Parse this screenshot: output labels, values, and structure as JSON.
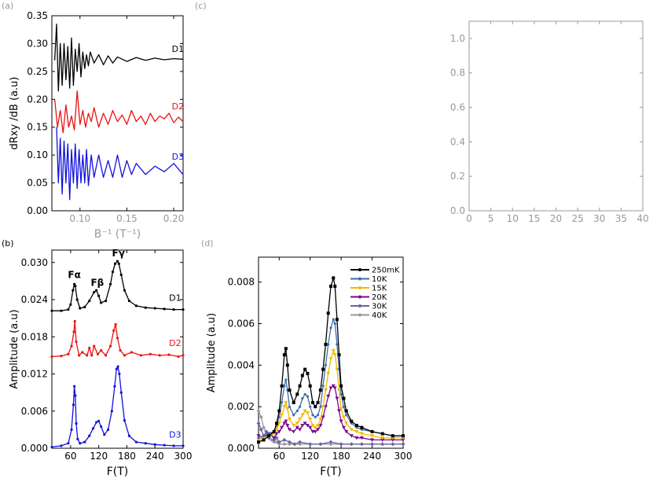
{
  "panel_labels": {
    "a": "(a)",
    "b": "(b)",
    "c": "(c)",
    "d": "(d)"
  },
  "colors": {
    "D1": "#000000",
    "D2": "#ee1111",
    "D3": "#1111dd",
    "axis_gray": "#999999",
    "c250mK": "#000000",
    "c10K": "#3a6fb0",
    "c15K": "#f5b800",
    "c20K": "#7a0a8c",
    "c30K": "#6a62a8",
    "c40K": "#999999"
  },
  "chart_data": [
    {
      "id": "a",
      "type": "line",
      "xlabel": "B⁻¹ (T⁻¹)",
      "ylabel": "dRxy /dB (a.u)",
      "xlim": [
        0.07,
        0.21
      ],
      "ylim": [
        0.0,
        0.35
      ],
      "xticks": [
        0.1,
        0.15,
        0.2
      ],
      "xtick_labels": [
        "0.10",
        "0.15",
        "0.20"
      ],
      "yticks": [
        0.0,
        0.05,
        0.1,
        0.15,
        0.2,
        0.25,
        0.3,
        0.35
      ],
      "ytick_labels": [
        "0.00",
        "0.05",
        "0.10",
        "0.15",
        "0.20",
        "0.25",
        "0.30",
        "0.35"
      ],
      "series": [
        {
          "name": "D1",
          "baseline": 0.272,
          "x_start": 0.073,
          "x": [
            0.073,
            0.075,
            0.077,
            0.079,
            0.081,
            0.083,
            0.085,
            0.087,
            0.089,
            0.091,
            0.093,
            0.095,
            0.097,
            0.099,
            0.101,
            0.103,
            0.105,
            0.107,
            0.109,
            0.111,
            0.115,
            0.12,
            0.125,
            0.13,
            0.135,
            0.14,
            0.15,
            0.16,
            0.17,
            0.18,
            0.19,
            0.2,
            0.21
          ],
          "y": [
            0.27,
            0.335,
            0.215,
            0.3,
            0.225,
            0.3,
            0.235,
            0.295,
            0.22,
            0.31,
            0.225,
            0.29,
            0.25,
            0.3,
            0.24,
            0.285,
            0.255,
            0.28,
            0.26,
            0.285,
            0.265,
            0.28,
            0.262,
            0.278,
            0.265,
            0.276,
            0.268,
            0.275,
            0.27,
            0.274,
            0.271,
            0.273,
            0.272
          ]
        },
        {
          "name": "D2",
          "baseline": 0.162,
          "x": [
            0.073,
            0.076,
            0.079,
            0.082,
            0.085,
            0.088,
            0.091,
            0.094,
            0.097,
            0.1,
            0.103,
            0.106,
            0.109,
            0.112,
            0.115,
            0.12,
            0.125,
            0.13,
            0.135,
            0.14,
            0.145,
            0.15,
            0.155,
            0.16,
            0.165,
            0.17,
            0.175,
            0.18,
            0.185,
            0.19,
            0.195,
            0.2,
            0.205,
            0.21
          ],
          "y": [
            0.2,
            0.15,
            0.18,
            0.14,
            0.19,
            0.15,
            0.17,
            0.145,
            0.215,
            0.155,
            0.18,
            0.15,
            0.175,
            0.16,
            0.185,
            0.15,
            0.175,
            0.155,
            0.18,
            0.16,
            0.172,
            0.155,
            0.18,
            0.16,
            0.17,
            0.155,
            0.175,
            0.16,
            0.17,
            0.165,
            0.175,
            0.158,
            0.168,
            0.16
          ]
        },
        {
          "name": "D3",
          "baseline": 0.075,
          "x": [
            0.075,
            0.077,
            0.079,
            0.081,
            0.083,
            0.085,
            0.087,
            0.089,
            0.091,
            0.093,
            0.095,
            0.097,
            0.099,
            0.101,
            0.103,
            0.105,
            0.107,
            0.109,
            0.112,
            0.115,
            0.12,
            0.125,
            0.13,
            0.135,
            0.14,
            0.145,
            0.15,
            0.155,
            0.16,
            0.17,
            0.18,
            0.19,
            0.2,
            0.21
          ],
          "y": [
            0.15,
            0.05,
            0.13,
            0.03,
            0.125,
            0.05,
            0.12,
            0.02,
            0.11,
            0.05,
            0.12,
            0.04,
            0.11,
            0.05,
            0.1,
            0.05,
            0.11,
            0.045,
            0.1,
            0.06,
            0.1,
            0.06,
            0.09,
            0.06,
            0.1,
            0.06,
            0.09,
            0.065,
            0.085,
            0.065,
            0.08,
            0.07,
            0.085,
            0.065
          ]
        }
      ]
    },
    {
      "id": "b",
      "type": "line",
      "xlabel": "F(T)",
      "ylabel": "Amplitude (a.u)",
      "xlim": [
        20,
        300
      ],
      "ylim": [
        0.0,
        0.032
      ],
      "xticks": [
        60,
        120,
        180,
        240,
        300
      ],
      "xtick_labels": [
        "60",
        "120",
        "180",
        "240",
        "300"
      ],
      "yticks": [
        0.0,
        0.006,
        0.012,
        0.018,
        0.024,
        0.03
      ],
      "ytick_labels": [
        "0.000",
        "0.006",
        "0.012",
        "0.018",
        "0.024",
        "0.030"
      ],
      "series": [
        {
          "name": "D1",
          "x": [
            20,
            40,
            55,
            60,
            65,
            68,
            70,
            74,
            80,
            90,
            100,
            110,
            115,
            120,
            125,
            135,
            145,
            150,
            155,
            160,
            163,
            168,
            175,
            185,
            200,
            220,
            240,
            260,
            280,
            300
          ],
          "y": [
            0.0222,
            0.0222,
            0.0224,
            0.0232,
            0.0255,
            0.0265,
            0.0262,
            0.024,
            0.0226,
            0.0228,
            0.0238,
            0.0252,
            0.0255,
            0.0246,
            0.0235,
            0.0238,
            0.0265,
            0.0285,
            0.0298,
            0.0302,
            0.0298,
            0.028,
            0.0255,
            0.0238,
            0.023,
            0.0227,
            0.0226,
            0.0225,
            0.0224,
            0.0224
          ]
        },
        {
          "name": "D2",
          "x": [
            20,
            40,
            55,
            62,
            67,
            69,
            72,
            78,
            85,
            95,
            100,
            105,
            110,
            118,
            125,
            135,
            145,
            152,
            156,
            160,
            166,
            175,
            190,
            210,
            230,
            250,
            270,
            290,
            300
          ],
          "y": [
            0.0148,
            0.0149,
            0.0152,
            0.0165,
            0.0188,
            0.0205,
            0.0172,
            0.015,
            0.0155,
            0.015,
            0.0162,
            0.015,
            0.0165,
            0.0152,
            0.0158,
            0.015,
            0.0165,
            0.019,
            0.02,
            0.0178,
            0.0158,
            0.015,
            0.0155,
            0.015,
            0.0152,
            0.015,
            0.0151,
            0.0148,
            0.015
          ]
        },
        {
          "name": "D3",
          "x": [
            20,
            40,
            55,
            62,
            66,
            68,
            70,
            72,
            75,
            80,
            90,
            100,
            108,
            115,
            120,
            125,
            132,
            140,
            148,
            154,
            158,
            161,
            164,
            168,
            175,
            185,
            200,
            220,
            240,
            260,
            280,
            300
          ],
          "y": [
            0.0002,
            0.0004,
            0.0008,
            0.003,
            0.007,
            0.01,
            0.0085,
            0.004,
            0.0015,
            0.0008,
            0.001,
            0.002,
            0.0032,
            0.0042,
            0.0044,
            0.0035,
            0.0022,
            0.003,
            0.006,
            0.01,
            0.0128,
            0.0132,
            0.012,
            0.009,
            0.0045,
            0.002,
            0.001,
            0.0008,
            0.0006,
            0.0005,
            0.0004,
            0.0004
          ]
        }
      ],
      "annotations": [
        "Fα",
        "Fβ",
        "Fγ"
      ]
    },
    {
      "id": "c",
      "type": "line",
      "xlim": [
        0,
        40
      ],
      "ylim": [
        0.0,
        1.1
      ],
      "xticks": [
        0,
        5,
        10,
        15,
        20,
        25,
        30,
        35,
        40
      ],
      "xtick_labels": [
        "0",
        "5",
        "10",
        "15",
        "20",
        "25",
        "30",
        "35",
        "40"
      ],
      "yticks": [
        0.0,
        0.2,
        0.4,
        0.6,
        0.8,
        1.0
      ],
      "ytick_labels": [
        "0.0",
        "0.2",
        "0.4",
        "0.6",
        "0.8",
        "1.0"
      ],
      "series": []
    },
    {
      "id": "d",
      "type": "line",
      "xlabel": "F(T)",
      "ylabel": "Amplitude (a.u)",
      "xlim": [
        20,
        300
      ],
      "ylim": [
        0.0,
        0.0092
      ],
      "xticks": [
        60,
        120,
        180,
        240,
        300
      ],
      "xtick_labels": [
        "60",
        "120",
        "180",
        "240",
        "300"
      ],
      "yticks": [
        0.0,
        0.002,
        0.004,
        0.006,
        0.008
      ],
      "ytick_labels": [
        "0.000",
        "0.002",
        "0.004",
        "0.006",
        "0.008"
      ],
      "legend": "top-right",
      "series": [
        {
          "name": "250mK",
          "x": [
            20,
            30,
            40,
            50,
            55,
            60,
            65,
            70,
            73,
            76,
            80,
            88,
            95,
            100,
            105,
            110,
            115,
            120,
            125,
            130,
            135,
            140,
            145,
            150,
            155,
            160,
            165,
            168,
            172,
            176,
            180,
            185,
            190,
            200,
            210,
            220,
            240,
            260,
            280,
            300
          ],
          "y": [
            0.0003,
            0.0004,
            0.0006,
            0.0008,
            0.0012,
            0.0018,
            0.003,
            0.0045,
            0.0048,
            0.004,
            0.0028,
            0.0022,
            0.0026,
            0.003,
            0.0035,
            0.0038,
            0.0036,
            0.003,
            0.0022,
            0.002,
            0.0022,
            0.0028,
            0.0038,
            0.005,
            0.0065,
            0.0078,
            0.0082,
            0.0078,
            0.0062,
            0.0045,
            0.003,
            0.0024,
            0.0018,
            0.0013,
            0.0011,
            0.001,
            0.0008,
            0.0007,
            0.0006,
            0.0006
          ]
        },
        {
          "name": "10K",
          "x": [
            20,
            30,
            40,
            50,
            55,
            60,
            65,
            70,
            73,
            76,
            80,
            88,
            95,
            100,
            105,
            110,
            115,
            120,
            125,
            130,
            135,
            140,
            145,
            150,
            155,
            160,
            165,
            168,
            172,
            176,
            180,
            185,
            190,
            200,
            210,
            220,
            240,
            260,
            280,
            300
          ],
          "y": [
            0.0005,
            0.0006,
            0.0007,
            0.0008,
            0.0011,
            0.0015,
            0.0022,
            0.003,
            0.0033,
            0.0028,
            0.002,
            0.0016,
            0.0018,
            0.002,
            0.0024,
            0.0026,
            0.0025,
            0.002,
            0.0016,
            0.0015,
            0.0016,
            0.002,
            0.003,
            0.004,
            0.005,
            0.0058,
            0.0062,
            0.006,
            0.005,
            0.0038,
            0.0026,
            0.002,
            0.0016,
            0.0012,
            0.001,
            0.0009,
            0.0008,
            0.0007,
            0.0006,
            0.0006
          ]
        },
        {
          "name": "15K",
          "x": [
            20,
            30,
            40,
            50,
            55,
            60,
            65,
            70,
            73,
            76,
            80,
            88,
            95,
            100,
            105,
            110,
            115,
            120,
            125,
            130,
            135,
            140,
            145,
            150,
            155,
            160,
            165,
            168,
            172,
            176,
            180,
            185,
            190,
            200,
            210,
            220,
            240,
            260,
            280,
            300
          ],
          "y": [
            0.0004,
            0.0005,
            0.0006,
            0.0007,
            0.0009,
            0.0012,
            0.0016,
            0.002,
            0.0022,
            0.0019,
            0.0014,
            0.0011,
            0.0012,
            0.0014,
            0.0016,
            0.0018,
            0.0017,
            0.0014,
            0.0011,
            0.001,
            0.0011,
            0.0014,
            0.002,
            0.0028,
            0.0036,
            0.0043,
            0.0047,
            0.0045,
            0.0038,
            0.0028,
            0.0019,
            0.0015,
            0.0012,
            0.0009,
            0.0008,
            0.0007,
            0.0006,
            0.0005,
            0.0005,
            0.0005
          ]
        },
        {
          "name": "20K",
          "x": [
            20,
            30,
            40,
            50,
            55,
            60,
            65,
            70,
            73,
            76,
            80,
            88,
            95,
            100,
            105,
            110,
            115,
            120,
            125,
            130,
            135,
            140,
            145,
            150,
            155,
            160,
            165,
            168,
            172,
            176,
            180,
            185,
            190,
            200,
            210,
            220,
            240,
            260,
            280,
            300
          ],
          "y": [
            0.0006,
            0.0005,
            0.0007,
            0.0005,
            0.0007,
            0.0008,
            0.001,
            0.0012,
            0.0013,
            0.0011,
            0.0009,
            0.0008,
            0.001,
            0.0009,
            0.0011,
            0.0012,
            0.0011,
            0.001,
            0.0008,
            0.0008,
            0.0009,
            0.0011,
            0.0015,
            0.002,
            0.0025,
            0.0029,
            0.003,
            0.0029,
            0.0024,
            0.0018,
            0.0013,
            0.001,
            0.0008,
            0.0006,
            0.0005,
            0.0005,
            0.0004,
            0.0004,
            0.0004,
            0.0004
          ]
        },
        {
          "name": "30K",
          "x": [
            20,
            25,
            30,
            35,
            40,
            45,
            50,
            55,
            60,
            70,
            80,
            90,
            100,
            120,
            140,
            160,
            180,
            200,
            220,
            240,
            260,
            280,
            300
          ],
          "y": [
            0.0012,
            0.0009,
            0.0006,
            0.0008,
            0.0005,
            0.0007,
            0.0004,
            0.0005,
            0.0003,
            0.0004,
            0.0003,
            0.0002,
            0.0003,
            0.0002,
            0.0002,
            0.0003,
            0.0002,
            0.0002,
            0.0002,
            0.0002,
            0.0002,
            0.0002,
            0.0002
          ]
        },
        {
          "name": "40K",
          "x": [
            20,
            25,
            30,
            35,
            40,
            45,
            50,
            55,
            60,
            70,
            80,
            90,
            100,
            120,
            140,
            160,
            180,
            200,
            220,
            240,
            260,
            280,
            300
          ],
          "y": [
            0.0018,
            0.0015,
            0.001,
            0.0007,
            0.0005,
            0.0004,
            0.0003,
            0.0003,
            0.0002,
            0.0002,
            0.0002,
            0.0002,
            0.0002,
            0.0002,
            0.0002,
            0.0002,
            0.0002,
            0.0002,
            0.0002,
            0.0002,
            0.0002,
            0.0002,
            0.0002
          ]
        }
      ]
    }
  ]
}
